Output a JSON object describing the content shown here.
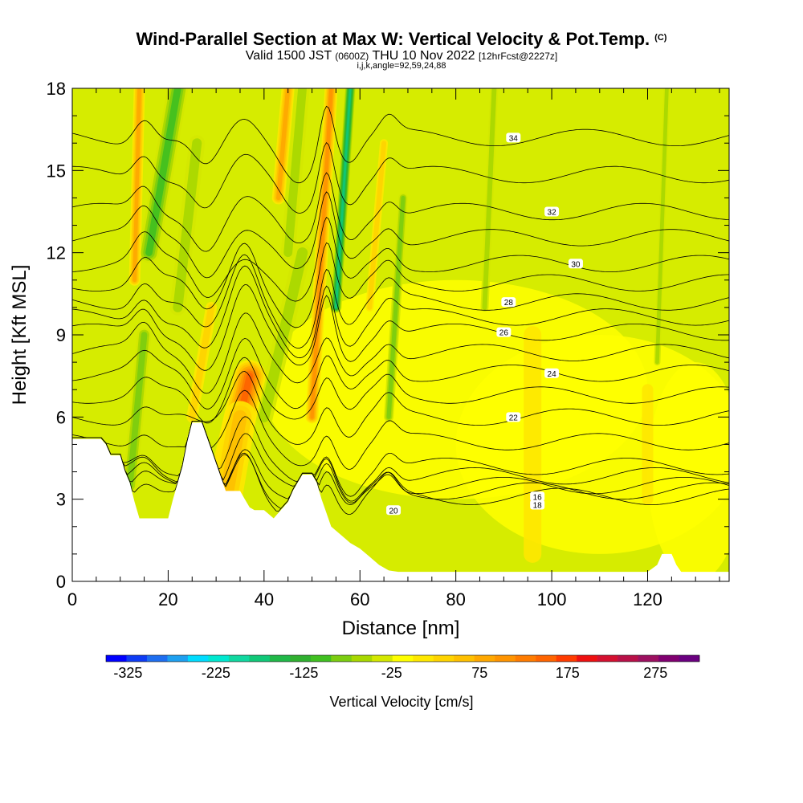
{
  "header": {
    "title": "Wind-Parallel Section at Max W: Vertical Velocity & Pot.Temp.",
    "copyright": "(C)",
    "valid_prefix": "Valid 1500 JST",
    "valid_z": "(0600Z)",
    "valid_date": "THU 10 Nov 2022",
    "forecast": "[12hrFcst@2227z]",
    "indices": "i,j,k,angle=92,59,24,88"
  },
  "chart_data": {
    "type": "heatmap",
    "xlabel": "Distance [nm]",
    "ylabel": "Height [Kft MSL]",
    "xlim": [
      0,
      137
    ],
    "ylim": [
      0,
      18
    ],
    "x_ticks": [
      0,
      20,
      40,
      60,
      80,
      100,
      120
    ],
    "y_ticks": [
      0,
      3,
      6,
      9,
      12,
      15,
      18
    ],
    "background_value": 0,
    "updrafts": [
      {
        "x": 14,
        "y": 15,
        "value": 110
      },
      {
        "x": 36,
        "y": 6,
        "value": 170
      },
      {
        "x": 44,
        "y": 17,
        "value": 120
      },
      {
        "x": 53,
        "y": 15,
        "value": 140
      },
      {
        "x": 27,
        "y": 8,
        "value": 60
      },
      {
        "x": 23,
        "y": 16,
        "value": 60
      }
    ],
    "downdrafts": [
      {
        "x": 18,
        "y": 16,
        "value": -90
      },
      {
        "x": 57,
        "y": 16,
        "value": -175
      },
      {
        "x": 47,
        "y": 13,
        "value": -60
      },
      {
        "x": 68,
        "y": 14,
        "value": -60
      },
      {
        "x": 12,
        "y": 5,
        "value": -80
      }
    ],
    "theta_contours": [
      {
        "value": 16,
        "label_x": 97,
        "label_y": 3.1
      },
      {
        "value": 18,
        "label_x": 97,
        "label_y": 2.8
      },
      {
        "value": 20,
        "label_x": 67,
        "label_y": 2.6
      },
      {
        "value": 22,
        "label_x": 92,
        "label_y": 6.0
      },
      {
        "value": 24,
        "label_x": 100,
        "label_y": 7.6
      },
      {
        "value": 26,
        "label_x": 90,
        "label_y": 9.1
      },
      {
        "value": 28,
        "label_x": 91,
        "label_y": 10.2
      },
      {
        "value": 30,
        "label_x": 105,
        "label_y": 11.6
      },
      {
        "value": 32,
        "label_x": 100,
        "label_y": 13.5
      },
      {
        "value": 34,
        "label_x": 92,
        "label_y": 16.2
      }
    ],
    "colorbar": {
      "title": "Vertical Velocity [cm/s]",
      "tick_labels": [
        "-325",
        "-225",
        "-125",
        "-25",
        "75",
        "175",
        "275"
      ],
      "min": -350,
      "max": 325,
      "step": 25,
      "colors": [
        "#0000ff",
        "#0e3cf4",
        "#1e6ef0",
        "#1ea0f0",
        "#00dcff",
        "#00e8d0",
        "#10d8a0",
        "#10c878",
        "#20b848",
        "#30b030",
        "#40c020",
        "#7ccd10",
        "#a8d800",
        "#d4e800",
        "#ffff00",
        "#ffe800",
        "#ffd400",
        "#ffc000",
        "#ffa800",
        "#ff9400",
        "#ff7c00",
        "#ff6400",
        "#ff3c00",
        "#ee1010",
        "#d41030",
        "#b81048",
        "#9c1060",
        "#800070",
        "#6a0080"
      ]
    }
  }
}
